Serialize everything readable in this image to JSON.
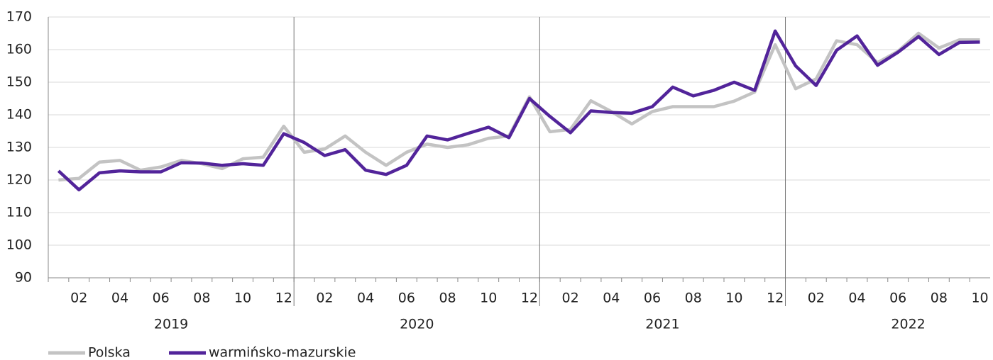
{
  "chart_data": {
    "type": "line",
    "categories": [
      null,
      "02",
      null,
      "04",
      null,
      "06",
      null,
      "08",
      null,
      "10",
      null,
      "12",
      null,
      "02",
      null,
      "04",
      null,
      "06",
      null,
      "08",
      null,
      "10",
      null,
      "12",
      null,
      "02",
      null,
      "04",
      null,
      "06",
      null,
      "08",
      null,
      "10",
      null,
      "12",
      null,
      "02",
      null,
      "04",
      null,
      "06",
      null,
      "08",
      null,
      "10"
    ],
    "groups": [
      "2019",
      "2020",
      "2021",
      "2022"
    ],
    "series": [
      {
        "name": "Polska",
        "color": "#c3c3c3",
        "values": [
          120,
          120.5,
          125.5,
          126,
          123,
          124,
          126,
          125,
          123.5,
          126.5,
          127,
          136.5,
          128.5,
          129.5,
          133.5,
          128.5,
          124.5,
          128.5,
          131,
          130,
          130.8,
          132.8,
          133.5,
          145.5,
          134.8,
          135.5,
          144.3,
          141,
          137.2,
          141,
          142.5,
          142.5,
          142.5,
          144.2,
          147,
          161.5,
          148,
          151,
          162.7,
          161.5,
          156,
          159.5,
          165,
          160.5,
          163,
          163
        ]
      },
      {
        "name": "warmińsko-mazurskie",
        "color": "#52249a",
        "values": [
          122.8,
          117,
          122.2,
          122.8,
          122.5,
          122.5,
          125.3,
          125.2,
          124.5,
          125,
          124.5,
          134.2,
          131.5,
          127.5,
          129.3,
          123,
          121.7,
          124.5,
          133.5,
          132.3,
          134.3,
          136.2,
          133,
          145,
          139.5,
          134.5,
          141.2,
          140.7,
          140.5,
          142.5,
          148.5,
          145.8,
          147.5,
          150,
          147.5,
          165.7,
          155,
          149,
          159.8,
          164.2,
          155.2,
          159.2,
          164,
          158.5,
          162.2,
          162.3
        ]
      }
    ],
    "ylim": [
      90,
      170
    ],
    "yticks": [
      90,
      100,
      110,
      120,
      130,
      140,
      150,
      160,
      170
    ],
    "grid": true
  }
}
